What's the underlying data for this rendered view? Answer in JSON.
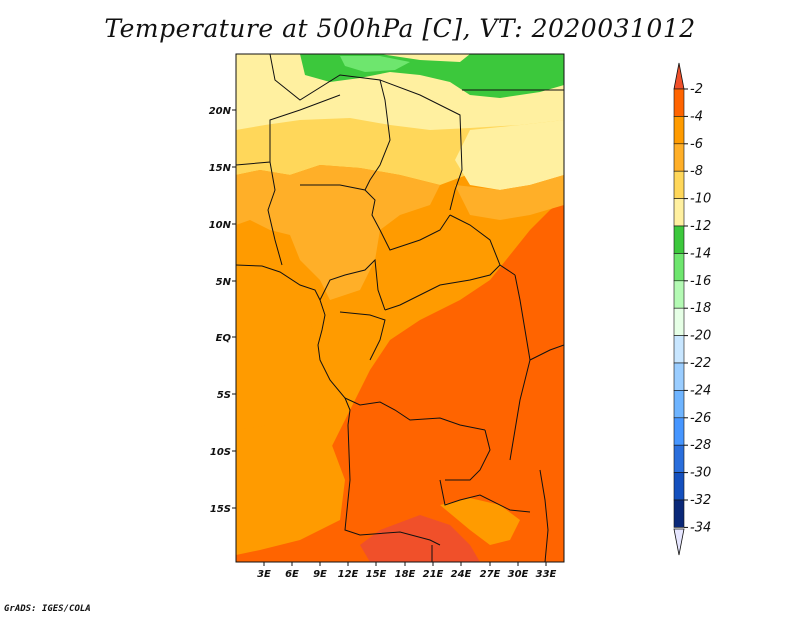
{
  "title": "Temperature at 500hPa [C], VT: 2020031012",
  "credit": "GrADS: IGES/COLA",
  "lat_ticks": [
    "20N",
    "15N",
    "10N",
    "5N",
    "EQ",
    "5S",
    "10S",
    "15S"
  ],
  "lon_ticks": [
    "3E",
    "6E",
    "9E",
    "12E",
    "15E",
    "18E",
    "21E",
    "24E",
    "27E",
    "30E",
    "33E"
  ],
  "colorbar": {
    "labels": [
      "-2",
      "-4",
      "-6",
      "-8",
      "-10",
      "-12",
      "-14",
      "-16",
      "-18",
      "-20",
      "-22",
      "-24",
      "-26",
      "-28",
      "-30",
      "-32",
      "-34"
    ],
    "colors": [
      "#f0502a",
      "#ff6400",
      "#ff9b00",
      "#ffaf28",
      "#ffd75a",
      "#fff0a0",
      "#3cc83c",
      "#6ee66e",
      "#b4fab4",
      "#e6ffe6",
      "#c8e6ff",
      "#9acdff",
      "#6eb4ff",
      "#4696ff",
      "#2a6edc",
      "#1450be",
      "#0a2878",
      "#e6e6ff"
    ]
  }
}
